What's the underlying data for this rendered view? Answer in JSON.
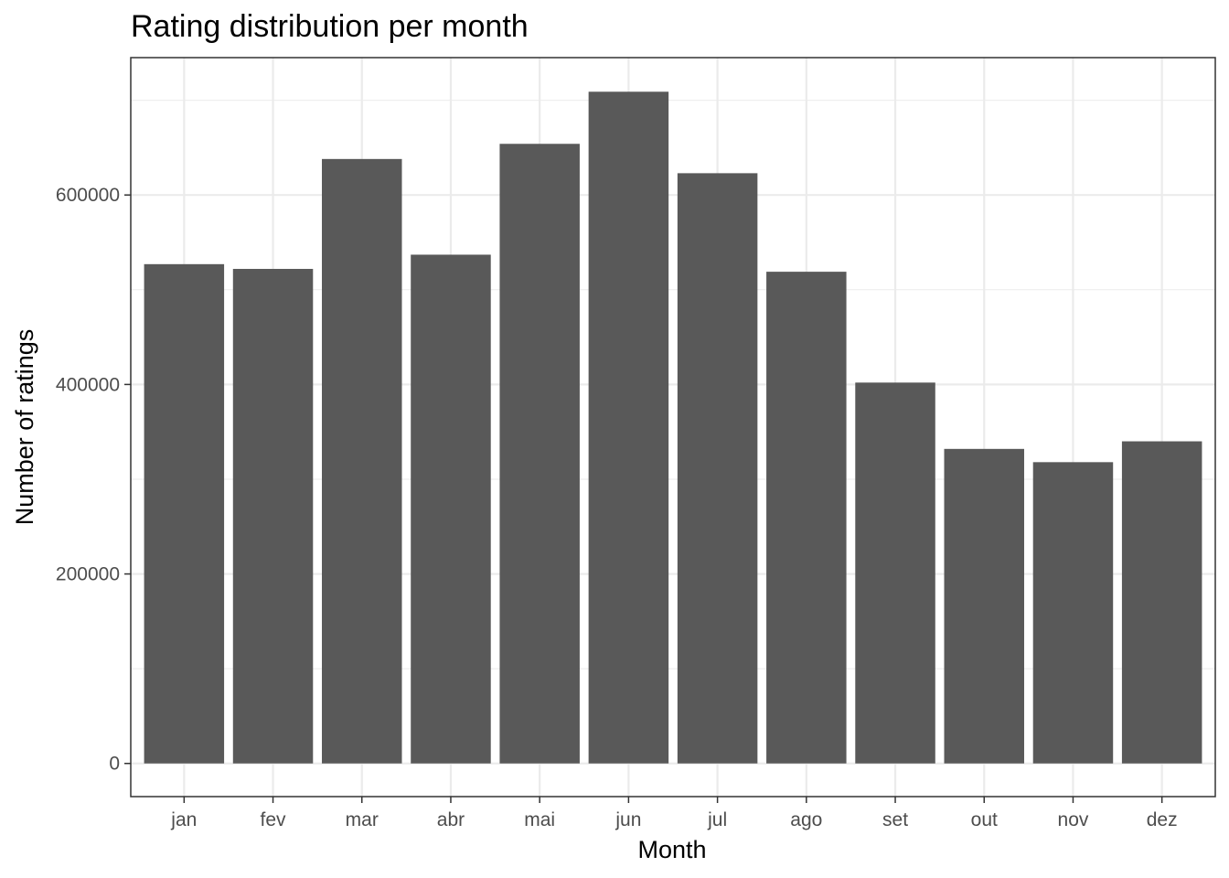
{
  "chart_data": {
    "type": "bar",
    "title": "Rating distribution per month",
    "xlabel": "Month",
    "ylabel": "Number of ratings",
    "categories": [
      "jan",
      "fev",
      "mar",
      "abr",
      "mai",
      "jun",
      "jul",
      "ago",
      "set",
      "out",
      "nov",
      "dez"
    ],
    "values": [
      527000,
      522000,
      638000,
      537000,
      654000,
      709000,
      623000,
      519000,
      402000,
      332000,
      318000,
      340000
    ],
    "ylim": [
      -35000,
      745000
    ],
    "yticks": [
      0,
      200000,
      400000,
      600000
    ],
    "ytick_labels": [
      "0",
      "200000",
      "400000",
      "600000"
    ],
    "grid": true,
    "bar_color": "#595959",
    "grid_color": "#ebebeb",
    "panel_border_color": "#333333"
  }
}
